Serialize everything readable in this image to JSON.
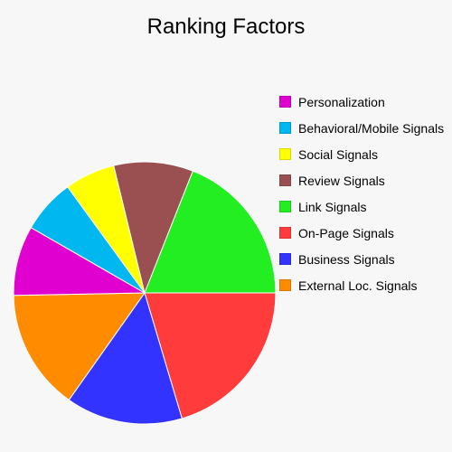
{
  "chart_data": {
    "type": "pie",
    "title": "Ranking Factors",
    "legend_position": "right",
    "start_angle_deg": 0,
    "direction": "clockwise",
    "slices": [
      {
        "label": "On-Page Signals",
        "value": 20.4,
        "color": "#ff3b3b"
      },
      {
        "label": "Business Signals",
        "value": 14.4,
        "color": "#3333ff"
      },
      {
        "label": "External Loc. Signals",
        "value": 14.9,
        "color": "#ff8c00"
      },
      {
        "label": "Personalization",
        "value": 8.6,
        "color": "#e000d0"
      },
      {
        "label": "Behavioral/Mobile Signals",
        "value": 6.7,
        "color": "#00b7f0"
      },
      {
        "label": "Social Signals",
        "value": 6.2,
        "color": "#ffff00"
      },
      {
        "label": "Review Signals",
        "value": 9.8,
        "color": "#9a5050"
      },
      {
        "label": "Link Signals",
        "value": 19.0,
        "color": "#22ee22"
      }
    ],
    "legend_order": [
      "Personalization",
      "Behavioral/Mobile Signals",
      "Social Signals",
      "Review Signals",
      "Link Signals",
      "On-Page Signals",
      "Business Signals",
      "External Loc. Signals"
    ]
  }
}
